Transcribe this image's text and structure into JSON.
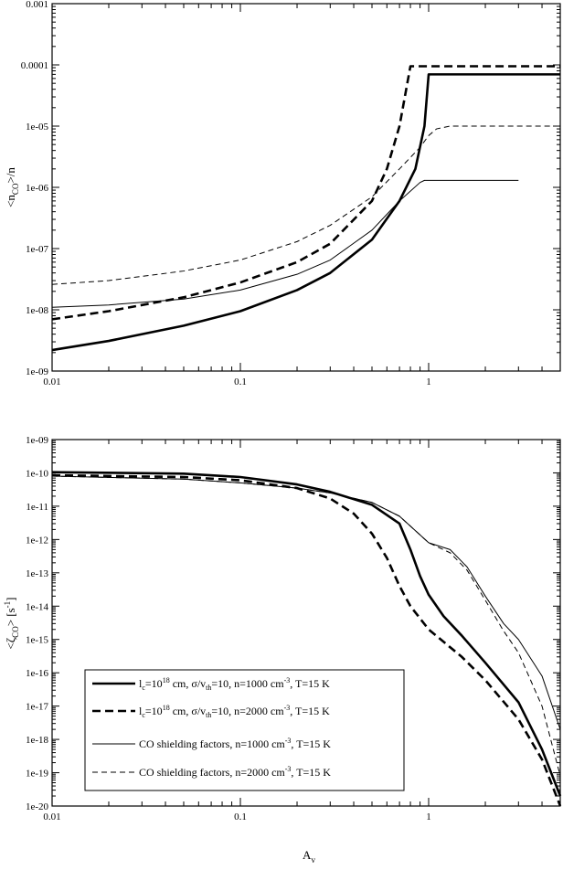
{
  "chart_data": [
    {
      "type": "line",
      "xlabel": "",
      "ylabel": "<n_CO>/n",
      "xscale": "log",
      "yscale": "log",
      "xlim": [
        0.01,
        5
      ],
      "ylim": [
        1e-09,
        0.001
      ],
      "xticks": [
        0.01,
        0.1,
        1
      ],
      "xtick_labels": [
        "0.01",
        "0.1",
        "1"
      ],
      "yticks": [
        1e-09,
        1e-08,
        1e-07,
        1e-06,
        1e-05,
        0.0001,
        0.001
      ],
      "ytick_labels": [
        "1e-09",
        "1e-08",
        "1e-07",
        "1e-06",
        "1e-05",
        "0.0001",
        "0.001"
      ],
      "grid": false,
      "series": [
        {
          "style": "thick-solid",
          "x": [
            0.01,
            0.02,
            0.05,
            0.1,
            0.2,
            0.3,
            0.5,
            0.7,
            0.85,
            0.95,
            1.0,
            1.5,
            2.0,
            3.0,
            5.0
          ],
          "y": [
            2.2e-09,
            3.1e-09,
            5.5e-09,
            9.5e-09,
            2.1e-08,
            4e-08,
            1.4e-07,
            6e-07,
            2e-06,
            1e-05,
            7e-05,
            7e-05,
            7e-05,
            7e-05,
            7e-05
          ]
        },
        {
          "style": "thick-dashed",
          "x": [
            0.01,
            0.02,
            0.05,
            0.1,
            0.2,
            0.3,
            0.5,
            0.6,
            0.7,
            0.8,
            1.0,
            2.0,
            3.0,
            5.0
          ],
          "y": [
            7e-09,
            9.5e-09,
            1.6e-08,
            2.8e-08,
            6e-08,
            1.2e-07,
            6e-07,
            2e-06,
            1e-05,
            9.5e-05,
            9.5e-05,
            9.5e-05,
            9.5e-05,
            9.5e-05
          ]
        },
        {
          "style": "thin-solid",
          "x": [
            0.01,
            0.02,
            0.05,
            0.1,
            0.2,
            0.3,
            0.5,
            0.7,
            0.9,
            0.95,
            1.0,
            2.0,
            3.0
          ],
          "y": [
            1.1e-08,
            1.2e-08,
            1.5e-08,
            2.1e-08,
            3.8e-08,
            6.5e-08,
            2e-07,
            6e-07,
            1.2e-06,
            1.3e-06,
            1.3e-06,
            1.3e-06,
            1.3e-06
          ]
        },
        {
          "style": "thin-dashed",
          "x": [
            0.01,
            0.02,
            0.05,
            0.1,
            0.2,
            0.3,
            0.5,
            0.7,
            0.9,
            1.0,
            1.1,
            1.3,
            1.6,
            2.0,
            3.0,
            5.0
          ],
          "y": [
            2.6e-08,
            3e-08,
            4.3e-08,
            6.5e-08,
            1.3e-07,
            2.4e-07,
            7e-07,
            2e-06,
            4.5e-06,
            7e-06,
            9e-06,
            1e-05,
            1e-05,
            1e-05,
            1e-05,
            1e-05
          ]
        }
      ]
    },
    {
      "type": "line",
      "xlabel": "Av",
      "ylabel": "<ζ_CO> [s^-1]",
      "xscale": "log",
      "yscale": "log",
      "xlim": [
        0.01,
        5
      ],
      "ylim": [
        1e-20,
        1e-09
      ],
      "xticks": [
        0.01,
        0.1,
        1
      ],
      "xtick_labels": [
        "0.01",
        "0.1",
        "1"
      ],
      "yticks": [
        1e-20,
        1e-19,
        1e-18,
        1e-17,
        1e-16,
        1e-15,
        1e-14,
        1e-13,
        1e-12,
        1e-11,
        1e-10,
        1e-09
      ],
      "ytick_labels": [
        "1e-20",
        "1e-19",
        "1e-18",
        "1e-17",
        "1e-16",
        "1e-15",
        "1e-14",
        "1e-13",
        "1e-12",
        "1e-11",
        "1e-10",
        "1e-09"
      ],
      "grid": false,
      "legend_position": "bottom-left",
      "series": [
        {
          "style": "thick-solid",
          "legend_label": "l_c=10^18 cm, σ/v_th=10, n=1000 cm^-3, T=15 K",
          "x": [
            0.01,
            0.05,
            0.1,
            0.2,
            0.3,
            0.5,
            0.7,
            0.8,
            0.9,
            1.0,
            1.2,
            1.5,
            2.0,
            3.0,
            4.0,
            5.0
          ],
          "y": [
            1.05e-10,
            9.5e-11,
            7.5e-11,
            4.5e-11,
            2.7e-11,
            1.1e-11,
            3e-12,
            5e-13,
            8e-14,
            2.2e-14,
            5e-15,
            1.3e-15,
            2e-16,
            1.3e-17,
            5e-19,
            2e-20
          ]
        },
        {
          "style": "thick-dashed",
          "legend_label": "l_c=10^18 cm, σ/v_th=10, n=2000 cm^-3, T=15 K",
          "x": [
            0.01,
            0.05,
            0.1,
            0.2,
            0.3,
            0.4,
            0.5,
            0.6,
            0.7,
            0.8,
            1.0,
            1.5,
            2.0,
            3.0,
            4.0,
            5.0
          ],
          "y": [
            8.5e-11,
            7.5e-11,
            6e-11,
            3.5e-11,
            1.7e-11,
            6e-12,
            1.5e-12,
            2.8e-13,
            4e-14,
            1e-14,
            2e-15,
            3e-16,
            6e-17,
            4e-18,
            2.5e-19,
            1e-20
          ]
        },
        {
          "style": "thin-solid",
          "legend_label": "CO shielding factors, n=1000 cm^-3, T=15 K",
          "x": [
            0.01,
            0.05,
            0.1,
            0.2,
            0.3,
            0.5,
            0.7,
            1.0,
            1.3,
            1.6,
            2.0,
            2.5,
            3.0,
            4.0,
            5.0
          ],
          "y": [
            8e-11,
            6.5e-11,
            5e-11,
            3.5e-11,
            2.5e-11,
            1.3e-11,
            5e-12,
            8e-13,
            5e-13,
            1.5e-13,
            2e-14,
            3e-15,
            1e-15,
            8e-17,
            2e-18
          ]
        },
        {
          "style": "thin-dashed",
          "legend_label": "CO shielding factors, n=2000 cm^-3, T=15 K",
          "x": [
            0.01,
            0.05,
            0.1,
            0.2,
            0.3,
            0.5,
            0.7,
            1.0,
            1.3,
            1.6,
            2.0,
            2.5,
            3.0,
            4.0,
            5.0
          ],
          "y": [
            8e-11,
            6.5e-11,
            5e-11,
            3.5e-11,
            2.5e-11,
            1.3e-11,
            5e-12,
            8e-13,
            4e-13,
            1.2e-13,
            1.5e-14,
            1.8e-15,
            4e-16,
            1e-17,
            8e-20
          ]
        }
      ]
    }
  ],
  "legend": {
    "entries": [
      {
        "lc": "l",
        "lc_sub": "c",
        "eq1": "=10",
        "exp": "18",
        "mid1": " cm, σ/v",
        "vsub": "th",
        "mid2": "=10, n=1000 cm",
        "nexp": "-3",
        "tail": ", T=15 K"
      },
      {
        "lc": "l",
        "lc_sub": "c",
        "eq1": "=10",
        "exp": "18",
        "mid1": " cm, σ/v",
        "vsub": "th",
        "mid2": "=10, n=2000 cm",
        "nexp": "-3",
        "tail": ", T=15 K"
      },
      {
        "head": "CO shielding factors, n=1000 cm",
        "nexp": "-3",
        "tail": ", T=15 K"
      },
      {
        "head": "CO shielding factors, n=2000 cm",
        "nexp": "-3",
        "tail": ", T=15 K"
      }
    ]
  },
  "axes_text": {
    "top_ylabel_main": "<n",
    "top_ylabel_sub": "CO",
    "top_ylabel_tail": ">/n",
    "bottom_ylabel_main": "<ζ",
    "bottom_ylabel_sub": "CO",
    "bottom_ylabel_tail": "> [s",
    "bottom_ylabel_exp": "-1",
    "bottom_ylabel_close": "]",
    "xlabel_main": "A",
    "xlabel_sub": "v"
  }
}
